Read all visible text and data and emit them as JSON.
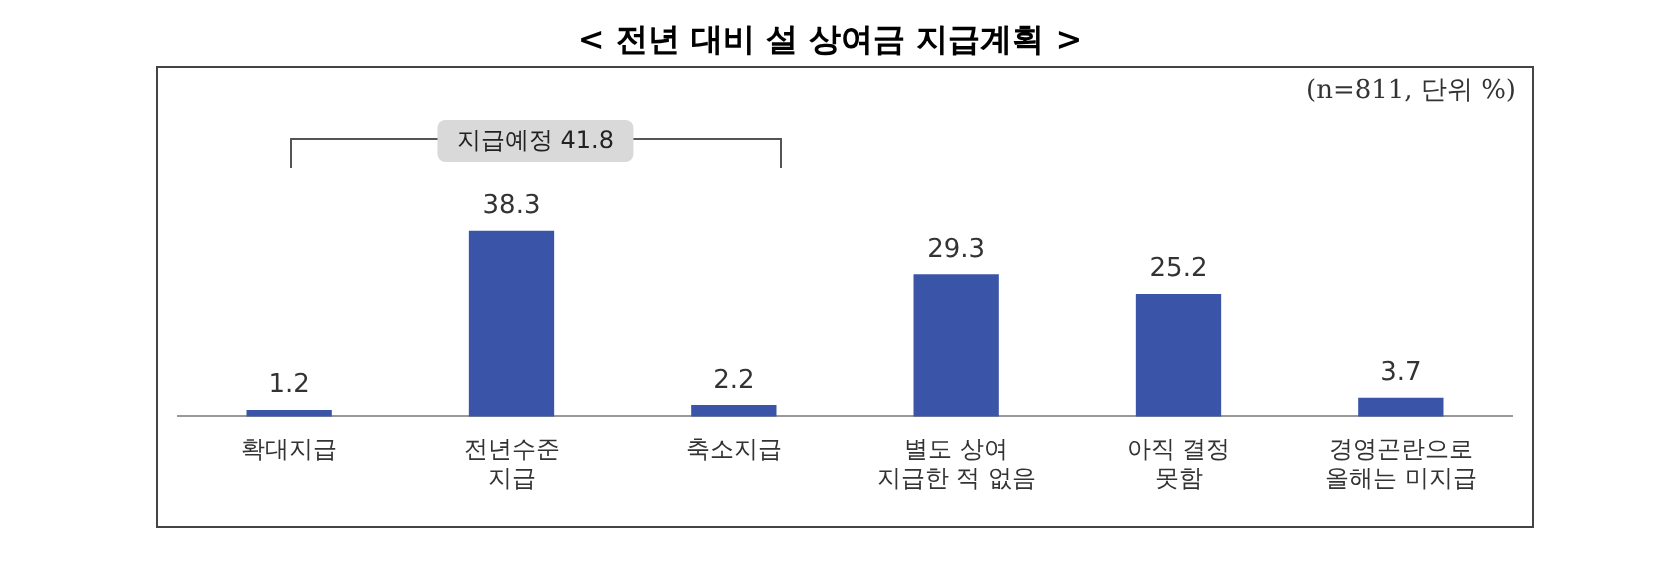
{
  "chart_data": {
    "type": "bar",
    "title": "< 전년 대비 설 상여금 지급계획 >",
    "categories": [
      "확대지급",
      "전년수준\n지급",
      "축소지급",
      "별도 상여\n지급한 적 없음",
      "아직 결정\n못함",
      "경영곤란으로\n올해는 미지급"
    ],
    "values": [
      1.2,
      38.3,
      2.2,
      29.3,
      25.2,
      3.7
    ],
    "color": "#3a55a8",
    "data_labels": true,
    "grid": false,
    "legend": false,
    "annotations": [
      "(n=811, 단위 %)",
      "지급예정 41.8"
    ]
  }
}
